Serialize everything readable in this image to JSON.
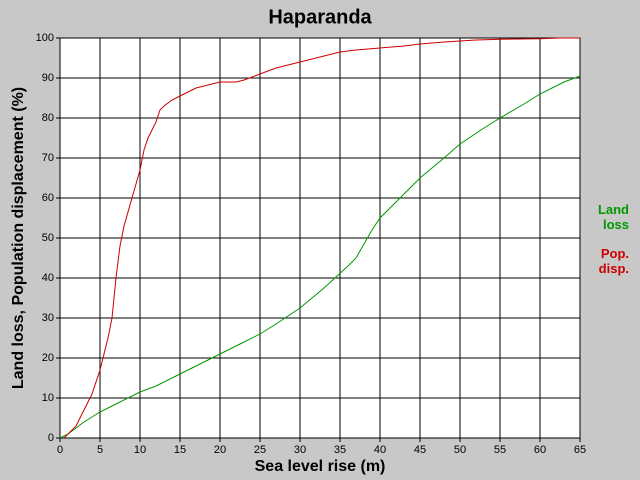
{
  "chart_data": {
    "type": "line",
    "title": "Haparanda",
    "x_label": "Sea level rise (m)",
    "y_label": "Land loss, Population displacement (%)",
    "xlim": [
      0,
      65
    ],
    "xticks": [
      0,
      5,
      10,
      15,
      20,
      25,
      30,
      35,
      40,
      45,
      50,
      55,
      60,
      65
    ],
    "ylim": [
      0,
      100
    ],
    "yticks": [
      0,
      10,
      20,
      30,
      40,
      50,
      60,
      70,
      80,
      90,
      100
    ],
    "grid": true,
    "series": [
      {
        "name": "Land loss",
        "color": "#009900",
        "x": [
          0,
          1,
          2,
          3,
          5,
          7,
          9,
          10,
          12,
          15,
          18,
          20,
          22,
          23,
          25,
          27,
          30,
          33,
          36,
          37,
          38,
          39,
          40,
          42,
          45,
          48,
          50,
          53,
          55,
          58,
          60,
          63,
          65
        ],
        "values": [
          0,
          1,
          2.5,
          4,
          6.5,
          8.5,
          10.5,
          11.5,
          13,
          16,
          19,
          21,
          23,
          24,
          26,
          28.5,
          32.5,
          37.5,
          43,
          45,
          48.5,
          52,
          55,
          59,
          65,
          70,
          73.5,
          77.5,
          80,
          83.5,
          86,
          89,
          90.5
        ]
      },
      {
        "name": "Pop. disp.",
        "color": "#cc0000",
        "x": [
          0.5,
          2,
          3,
          4,
          5,
          6,
          6.5,
          7,
          7.5,
          8,
          9,
          10,
          10.5,
          11,
          12,
          12.5,
          13,
          14,
          15,
          16,
          17,
          18,
          19,
          20,
          22,
          23,
          25,
          27,
          29,
          31,
          33,
          35,
          37,
          40,
          43,
          45,
          48,
          52,
          55,
          60,
          62.5,
          65
        ],
        "values": [
          0,
          3,
          7,
          11,
          17,
          25,
          30,
          40,
          48,
          53,
          60,
          67,
          72,
          75,
          79,
          82,
          83,
          84.5,
          85.5,
          86.5,
          87.5,
          88,
          88.5,
          89,
          89,
          89.5,
          91,
          92.5,
          93.5,
          94.5,
          95.5,
          96.5,
          97,
          97.5,
          98,
          98.5,
          99,
          99.5,
          99.7,
          99.8,
          100,
          100
        ]
      }
    ]
  }
}
